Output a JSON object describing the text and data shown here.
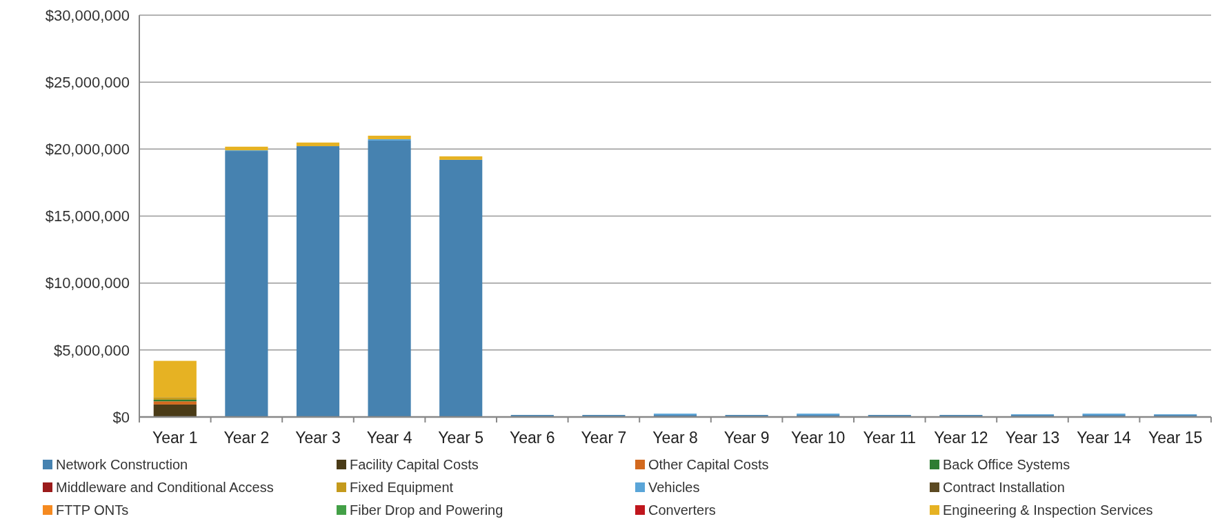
{
  "chart_data": {
    "type": "bar",
    "stacked": true,
    "categories": [
      "Year 1",
      "Year 2",
      "Year 3",
      "Year 4",
      "Year 5",
      "Year 6",
      "Year 7",
      "Year 8",
      "Year 9",
      "Year 10",
      "Year 11",
      "Year 12",
      "Year 13",
      "Year 14",
      "Year 15"
    ],
    "series": [
      {
        "name": "Network Construction",
        "color": "#4682b0",
        "values": [
          0,
          19860000,
          20220000,
          20640000,
          19200000,
          150000,
          150000,
          150000,
          150000,
          150000,
          150000,
          150000,
          150000,
          150000,
          150000
        ]
      },
      {
        "name": "Facility Capital Costs",
        "color": "#4a3b17",
        "values": [
          930000,
          0,
          0,
          0,
          0,
          0,
          0,
          0,
          0,
          0,
          0,
          0,
          0,
          0,
          0
        ]
      },
      {
        "name": "Other Capital Costs",
        "color": "#d2691e",
        "values": [
          240000,
          0,
          0,
          0,
          0,
          0,
          0,
          0,
          0,
          0,
          0,
          0,
          0,
          0,
          0
        ]
      },
      {
        "name": "Back Office Systems",
        "color": "#2e7d32",
        "values": [
          120000,
          0,
          0,
          0,
          0,
          0,
          0,
          0,
          0,
          0,
          0,
          0,
          0,
          0,
          0
        ]
      },
      {
        "name": "Middleware and Conditional Access",
        "color": "#9b1b1b",
        "values": [
          0,
          0,
          0,
          0,
          0,
          0,
          0,
          0,
          0,
          0,
          0,
          0,
          0,
          0,
          0
        ]
      },
      {
        "name": "Fixed Equipment",
        "color": "#c49a1c",
        "values": [
          190000,
          0,
          0,
          0,
          0,
          0,
          0,
          0,
          0,
          0,
          0,
          0,
          0,
          0,
          0
        ]
      },
      {
        "name": "Vehicles",
        "color": "#5aa5d8",
        "values": [
          0,
          50000,
          0,
          100000,
          0,
          0,
          0,
          100000,
          0,
          100000,
          0,
          0,
          50000,
          100000,
          50000
        ]
      },
      {
        "name": "Contract Installation",
        "color": "#5c4a23",
        "values": [
          0,
          0,
          0,
          0,
          0,
          0,
          0,
          0,
          0,
          0,
          0,
          0,
          0,
          0,
          0
        ]
      },
      {
        "name": "FTTP ONTs",
        "color": "#f58a20",
        "values": [
          0,
          0,
          0,
          0,
          0,
          0,
          0,
          0,
          0,
          0,
          0,
          0,
          0,
          0,
          0
        ]
      },
      {
        "name": "Fiber Drop and Powering",
        "color": "#43a047",
        "values": [
          0,
          0,
          0,
          0,
          0,
          0,
          0,
          0,
          0,
          0,
          0,
          0,
          0,
          0,
          0
        ]
      },
      {
        "name": "Converters",
        "color": "#c0161d",
        "values": [
          0,
          0,
          0,
          0,
          0,
          0,
          0,
          0,
          0,
          0,
          0,
          0,
          0,
          0,
          0
        ]
      },
      {
        "name": "Engineering & Inspection Services",
        "color": "#e6b223",
        "values": [
          2710000,
          270000,
          270000,
          260000,
          260000,
          0,
          0,
          0,
          0,
          0,
          0,
          0,
          0,
          0,
          0
        ]
      }
    ],
    "ylim": [
      0,
      30000000
    ],
    "yticks": [
      {
        "value": 0,
        "label": "$0"
      },
      {
        "value": 5000000,
        "label": "$5,000,000"
      },
      {
        "value": 10000000,
        "label": "$10,000,000"
      },
      {
        "value": 15000000,
        "label": "$15,000,000"
      },
      {
        "value": 20000000,
        "label": "$20,000,000"
      },
      {
        "value": 25000000,
        "label": "$25,000,000"
      },
      {
        "value": 30000000,
        "label": "$30,000,000"
      }
    ],
    "grid": "y",
    "legend": "bottom"
  }
}
